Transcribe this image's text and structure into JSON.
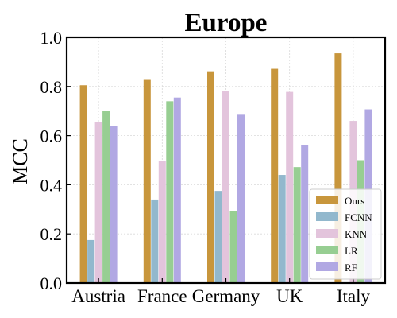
{
  "chart_data": {
    "type": "bar",
    "title": "Europe",
    "xlabel": "",
    "ylabel": "MCC",
    "ylim": [
      0.0,
      1.0
    ],
    "yticks": [
      "0.0",
      "0.2",
      "0.4",
      "0.6",
      "0.8",
      "1.0"
    ],
    "ytick_values": [
      0.0,
      0.2,
      0.4,
      0.6,
      0.8,
      1.0
    ],
    "grid": true,
    "legend_position": "bottom-right",
    "categories": [
      "Austria",
      "France",
      "Germany",
      "UK",
      "Italy"
    ],
    "series": [
      {
        "name": "Ours",
        "color": "#C8963C",
        "values": [
          0.805,
          0.83,
          0.862,
          0.872,
          0.935
        ]
      },
      {
        "name": "FCNN",
        "color": "#92B8CD",
        "values": [
          0.175,
          0.34,
          0.375,
          0.44,
          0.0
        ]
      },
      {
        "name": "KNN",
        "color": "#E3C4DC",
        "values": [
          0.655,
          0.497,
          0.78,
          0.778,
          0.66
        ]
      },
      {
        "name": "LR",
        "color": "#97CE92",
        "values": [
          0.702,
          0.74,
          0.292,
          0.472,
          0.5
        ]
      },
      {
        "name": "RF",
        "color": "#B1A8E3",
        "values": [
          0.638,
          0.755,
          0.685,
          0.563,
          0.707
        ]
      }
    ]
  }
}
